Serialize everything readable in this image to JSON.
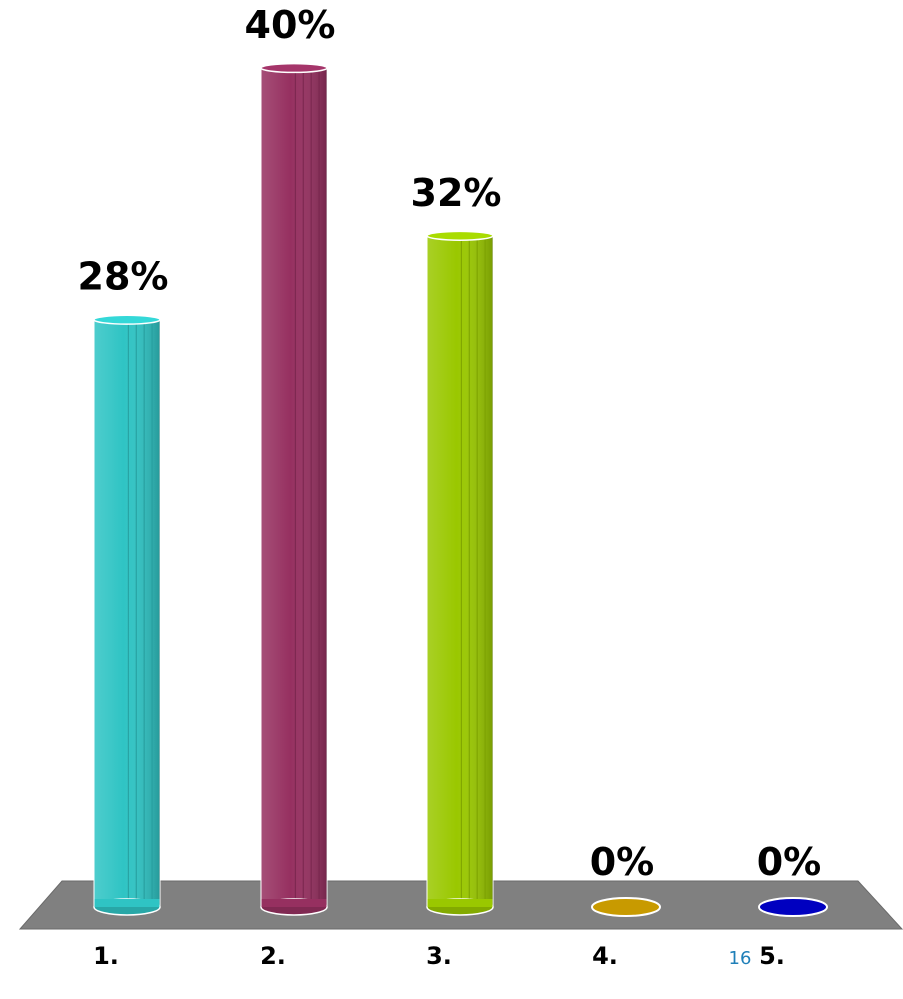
{
  "chart_data": {
    "type": "bar",
    "categories": [
      "1.",
      "2.",
      "3.",
      "4.",
      "5."
    ],
    "values": [
      28,
      40,
      32,
      0,
      0
    ],
    "value_labels": [
      "28%",
      "40%",
      "32%",
      "0%",
      "0%"
    ],
    "colors": [
      "#2fc4c4",
      "#963060",
      "#9ac800",
      "#c89a00",
      "#0000c0"
    ],
    "floor_color": "#808080",
    "ylim": [
      0,
      40
    ],
    "grid": false,
    "legend": "none",
    "title": "",
    "xlabel": "",
    "ylabel": ""
  },
  "page_number": "16"
}
